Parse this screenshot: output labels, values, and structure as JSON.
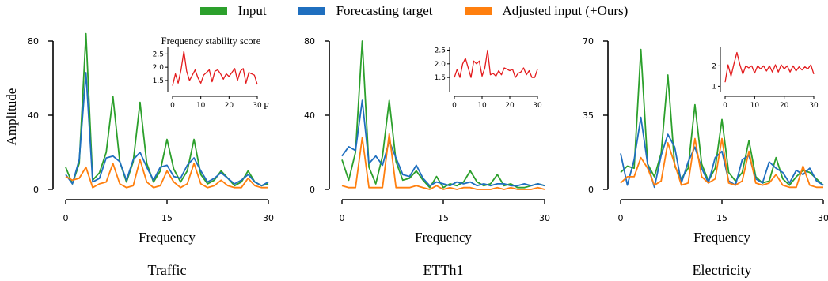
{
  "legend": {
    "items": [
      {
        "label": "Input",
        "color": "#2ca02c"
      },
      {
        "label": "Forecasting target",
        "color": "#1f6fbf"
      },
      {
        "label": "Adjusted input (+Ours)",
        "color": "#ff7f0e"
      }
    ]
  },
  "y_axis_label": "Amplitude",
  "inset_title": "Frequency stability score",
  "inset_title_tail": "F",
  "chart_data": [
    {
      "type": "line",
      "title": "Traffic",
      "xlabel": "Frequency",
      "ylabel": "Amplitude",
      "xlim": [
        0,
        30
      ],
      "ylim": [
        0,
        80
      ],
      "x_ticks": [
        0,
        15,
        30
      ],
      "y_ticks": [
        0,
        40,
        80
      ],
      "x": [
        0,
        1,
        2,
        3,
        4,
        5,
        6,
        7,
        8,
        9,
        10,
        11,
        12,
        13,
        14,
        15,
        16,
        17,
        18,
        19,
        20,
        21,
        22,
        23,
        24,
        25,
        26,
        27,
        28,
        29,
        30
      ],
      "series": [
        {
          "name": "Input",
          "color": "#2ca02c",
          "values": [
            12,
            3,
            14,
            84,
            5,
            9,
            20,
            50,
            15,
            4,
            15,
            47,
            14,
            4,
            10,
            27,
            11,
            4,
            10,
            27,
            8,
            3,
            5,
            10,
            6,
            2,
            4,
            10,
            4,
            2,
            3
          ]
        },
        {
          "name": "Forecasting target",
          "color": "#1f6fbf",
          "values": [
            8,
            3,
            16,
            63,
            4,
            6,
            17,
            18,
            15,
            5,
            16,
            20,
            12,
            5,
            12,
            13,
            7,
            6,
            13,
            17,
            10,
            4,
            6,
            9,
            6,
            3,
            5,
            8,
            4,
            2,
            4
          ]
        },
        {
          "name": "Adjusted input (+Ours)",
          "color": "#ff7f0e",
          "values": [
            7,
            5,
            6,
            12,
            1,
            3,
            4,
            14,
            3,
            1,
            2,
            16,
            4,
            1,
            2,
            10,
            4,
            1,
            3,
            14,
            3,
            1,
            2,
            5,
            2,
            1,
            1,
            6,
            2,
            1,
            1
          ]
        }
      ],
      "inset": {
        "title": "Frequency stability score",
        "xlim": [
          0,
          30
        ],
        "ylim": [
          1.2,
          2.75
        ],
        "x_ticks": [
          0,
          10,
          20,
          30
        ],
        "y_ticks": [
          1.5,
          2.0,
          2.5
        ],
        "y_tick_labels": [
          "1.5",
          "2.0",
          "2.5"
        ],
        "color": "#e31a1c",
        "x": [
          0,
          1,
          2,
          3,
          4,
          5,
          6,
          7,
          8,
          9,
          10,
          11,
          12,
          13,
          14,
          15,
          16,
          17,
          18,
          19,
          20,
          21,
          22,
          23,
          24,
          25,
          26,
          27,
          28,
          29,
          30
        ],
        "values": [
          1.3,
          1.75,
          1.4,
          1.9,
          2.6,
          1.85,
          1.5,
          1.7,
          1.9,
          1.6,
          1.4,
          1.7,
          1.8,
          1.9,
          1.45,
          1.85,
          1.9,
          1.75,
          1.55,
          1.75,
          1.65,
          1.8,
          1.95,
          1.5,
          1.85,
          1.95,
          1.4,
          1.8,
          1.75,
          1.7,
          1.35
        ]
      }
    },
    {
      "type": "line",
      "title": "ETTh1",
      "xlabel": "Frequency",
      "ylabel": "",
      "xlim": [
        0,
        30
      ],
      "ylim": [
        0,
        80
      ],
      "x_ticks": [
        0,
        15,
        30
      ],
      "y_ticks": [
        0,
        40,
        80
      ],
      "x": [
        0,
        1,
        2,
        3,
        4,
        5,
        6,
        7,
        8,
        9,
        10,
        11,
        12,
        13,
        14,
        15,
        16,
        17,
        18,
        19,
        20,
        21,
        22,
        23,
        24,
        25,
        26,
        27,
        28,
        29,
        30
      ],
      "series": [
        {
          "name": "Input",
          "color": "#2ca02c",
          "values": [
            16,
            5,
            20,
            80,
            12,
            3,
            18,
            48,
            15,
            5,
            6,
            10,
            5,
            1,
            7,
            1,
            3,
            2,
            4,
            10,
            4,
            2,
            3,
            8,
            2,
            3,
            1,
            1,
            2,
            3,
            2
          ]
        },
        {
          "name": "Forecasting target",
          "color": "#1f6fbf",
          "values": [
            18,
            23,
            21,
            48,
            14,
            18,
            13,
            26,
            17,
            8,
            7,
            13,
            6,
            2,
            4,
            3,
            2,
            4,
            3,
            4,
            2,
            3,
            2,
            3,
            3,
            2,
            2,
            3,
            2,
            3,
            2
          ]
        },
        {
          "name": "Adjusted input (+Ours)",
          "color": "#ff7f0e",
          "values": [
            2,
            1,
            1,
            28,
            1,
            1,
            1,
            30,
            1,
            1,
            1,
            2,
            1,
            0,
            2,
            0,
            1,
            0,
            1,
            1,
            0,
            0,
            0,
            1,
            0,
            1,
            0,
            0,
            0,
            1,
            0
          ]
        }
      ],
      "inset": {
        "title": "",
        "xlim": [
          0,
          30
        ],
        "ylim": [
          1.1,
          2.6
        ],
        "x_ticks": [
          0,
          10,
          20,
          30
        ],
        "y_ticks": [
          1.5,
          2.0,
          2.5
        ],
        "y_tick_labels": [
          "1.5",
          "2.0",
          "2.5"
        ],
        "color": "#e31a1c",
        "x": [
          0,
          1,
          2,
          3,
          4,
          5,
          6,
          7,
          8,
          9,
          10,
          11,
          12,
          13,
          14,
          15,
          16,
          17,
          18,
          19,
          20,
          21,
          22,
          23,
          24,
          25,
          26,
          27,
          28,
          29,
          30
        ],
        "values": [
          1.5,
          1.8,
          1.5,
          2.0,
          2.2,
          1.85,
          1.5,
          2.1,
          2.0,
          2.1,
          1.55,
          1.85,
          2.5,
          1.6,
          1.65,
          1.55,
          1.75,
          1.6,
          1.85,
          1.8,
          1.75,
          1.8,
          1.5,
          1.65,
          1.7,
          1.85,
          1.6,
          1.75,
          1.5,
          1.5,
          1.8
        ]
      }
    },
    {
      "type": "line",
      "title": "Electricity",
      "xlabel": "Frequency",
      "ylabel": "",
      "xlim": [
        0,
        30
      ],
      "ylim": [
        0,
        70
      ],
      "x_ticks": [
        0,
        15,
        30
      ],
      "y_ticks": [
        0,
        35,
        70
      ],
      "x": [
        0,
        1,
        2,
        3,
        4,
        5,
        6,
        7,
        8,
        9,
        10,
        11,
        12,
        13,
        14,
        15,
        16,
        17,
        18,
        19,
        20,
        21,
        22,
        23,
        24,
        25,
        26,
        27,
        28,
        29,
        30
      ],
      "series": [
        {
          "name": "Input",
          "color": "#2ca02c",
          "values": [
            8,
            11,
            10,
            66,
            12,
            6,
            17,
            54,
            11,
            5,
            10,
            40,
            12,
            4,
            10,
            33,
            8,
            4,
            8,
            23,
            6,
            3,
            4,
            15,
            5,
            2,
            6,
            9,
            8,
            5,
            2
          ]
        },
        {
          "name": "Forecasting target",
          "color": "#1f6fbf",
          "values": [
            17,
            2,
            14,
            34,
            12,
            1,
            16,
            26,
            20,
            3,
            13,
            20,
            10,
            3,
            15,
            18,
            4,
            2,
            14,
            16,
            5,
            3,
            13,
            10,
            8,
            3,
            9,
            7,
            10,
            4,
            2
          ]
        },
        {
          "name": "Adjusted input (+Ours)",
          "color": "#ff7f0e",
          "values": [
            3,
            6,
            6,
            15,
            10,
            2,
            4,
            22,
            12,
            2,
            3,
            24,
            6,
            3,
            5,
            24,
            3,
            2,
            4,
            18,
            3,
            2,
            3,
            7,
            2,
            1,
            1,
            11,
            2,
            1,
            1
          ]
        }
      ],
      "inset": {
        "title": "",
        "xlim": [
          0,
          30
        ],
        "ylim": [
          0.9,
          2.9
        ],
        "x_ticks": [
          0,
          10,
          20,
          30
        ],
        "y_ticks": [
          1,
          2
        ],
        "y_tick_labels": [
          "1",
          "2"
        ],
        "color": "#e31a1c",
        "x": [
          0,
          1,
          2,
          3,
          4,
          5,
          6,
          7,
          8,
          9,
          10,
          11,
          12,
          13,
          14,
          15,
          16,
          17,
          18,
          19,
          20,
          21,
          22,
          23,
          24,
          25,
          26,
          27,
          28,
          29,
          30
        ],
        "values": [
          1.2,
          2.05,
          1.5,
          2.1,
          2.65,
          2.05,
          1.6,
          2.0,
          1.9,
          2.0,
          1.65,
          2.0,
          1.85,
          2.0,
          1.75,
          2.0,
          1.7,
          2.05,
          1.7,
          2.05,
          1.85,
          2.0,
          1.7,
          2.0,
          1.75,
          1.95,
          1.8,
          1.95,
          1.85,
          2.05,
          1.6
        ]
      }
    }
  ]
}
